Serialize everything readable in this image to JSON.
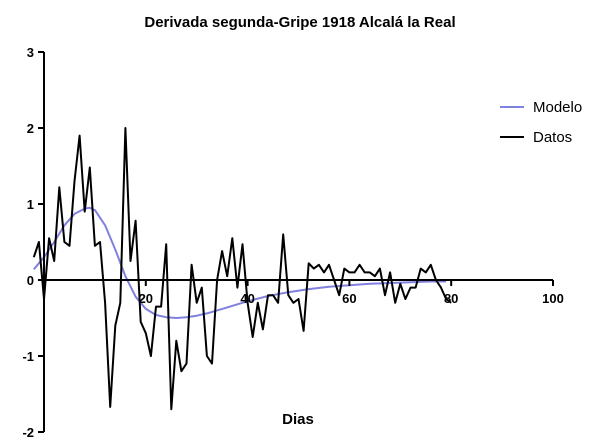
{
  "chart_data": {
    "type": "line",
    "title": "Derivada segunda-Gripe 1918 Alcalá la Real",
    "xlabel": "Dias",
    "ylabel": "",
    "xlim": [
      0,
      100
    ],
    "ylim": [
      -2,
      3
    ],
    "x_ticks": [
      20,
      40,
      60,
      80,
      100
    ],
    "x_tick_labels": [
      "20",
      "40",
      "60",
      "80",
      "100"
    ],
    "y_ticks": [
      -2,
      -1,
      0,
      1,
      2,
      3
    ],
    "y_tick_labels": [
      "-2",
      "-1",
      "0",
      "1",
      "2",
      "3"
    ],
    "grid": false,
    "legend_position": "right",
    "series": [
      {
        "name": "Modelo",
        "color": "#8080e0",
        "x": [
          -2,
          0,
          2,
          4,
          6,
          8,
          9,
          10,
          12,
          14,
          16,
          18,
          20,
          22,
          24,
          26,
          28,
          30,
          32,
          34,
          36,
          38,
          40,
          44,
          48,
          52,
          56,
          60,
          64,
          68,
          72,
          76,
          79
        ],
        "y": [
          0.14,
          0.3,
          0.5,
          0.72,
          0.87,
          0.94,
          0.95,
          0.92,
          0.72,
          0.4,
          0.05,
          -0.22,
          -0.38,
          -0.46,
          -0.49,
          -0.5,
          -0.49,
          -0.47,
          -0.44,
          -0.4,
          -0.36,
          -0.32,
          -0.28,
          -0.21,
          -0.16,
          -0.12,
          -0.09,
          -0.07,
          -0.05,
          -0.04,
          -0.03,
          -0.02,
          -0.02
        ]
      },
      {
        "name": "Datos",
        "color": "#000000",
        "x": [
          -2,
          -1,
          0,
          1,
          2,
          3,
          4,
          5,
          6,
          7,
          8,
          9,
          10,
          11,
          12,
          13,
          14,
          15,
          16,
          17,
          18,
          19,
          20,
          21,
          22,
          23,
          24,
          25,
          26,
          27,
          28,
          29,
          30,
          31,
          32,
          33,
          34,
          35,
          36,
          37,
          38,
          39,
          40,
          41,
          42,
          43,
          44,
          45,
          46,
          47,
          48,
          49,
          50,
          51,
          52,
          53,
          54,
          55,
          56,
          57,
          58,
          59,
          60,
          61,
          62,
          63,
          64,
          65,
          66,
          67,
          68,
          69,
          70,
          71,
          72,
          73,
          74,
          75,
          76,
          77,
          78,
          79,
          80
        ],
        "y": [
          0.3,
          0.5,
          -0.25,
          0.55,
          0.25,
          1.22,
          0.5,
          0.45,
          1.3,
          1.9,
          0.9,
          1.48,
          0.45,
          0.5,
          -0.3,
          -1.67,
          -0.6,
          -0.3,
          2.0,
          0.25,
          0.78,
          -0.55,
          -0.7,
          -1.0,
          -0.35,
          -0.35,
          0.47,
          -1.7,
          -0.8,
          -1.2,
          -1.1,
          0.2,
          -0.3,
          -0.1,
          -1.0,
          -1.1,
          0.0,
          0.38,
          0.05,
          0.55,
          -0.1,
          0.47,
          -0.3,
          -0.75,
          -0.3,
          -0.65,
          -0.2,
          -0.2,
          -0.3,
          0.6,
          -0.2,
          -0.3,
          -0.25,
          -0.67,
          0.22,
          0.15,
          0.2,
          0.1,
          0.2,
          0.0,
          -0.2,
          0.15,
          0.1,
          0.1,
          0.2,
          0.1,
          0.1,
          0.05,
          0.15,
          -0.2,
          0.1,
          -0.3,
          -0.05,
          -0.25,
          -0.1,
          -0.1,
          0.15,
          0.1,
          0.2,
          0.0,
          -0.1,
          -0.25,
          -0.3
        ]
      }
    ]
  }
}
